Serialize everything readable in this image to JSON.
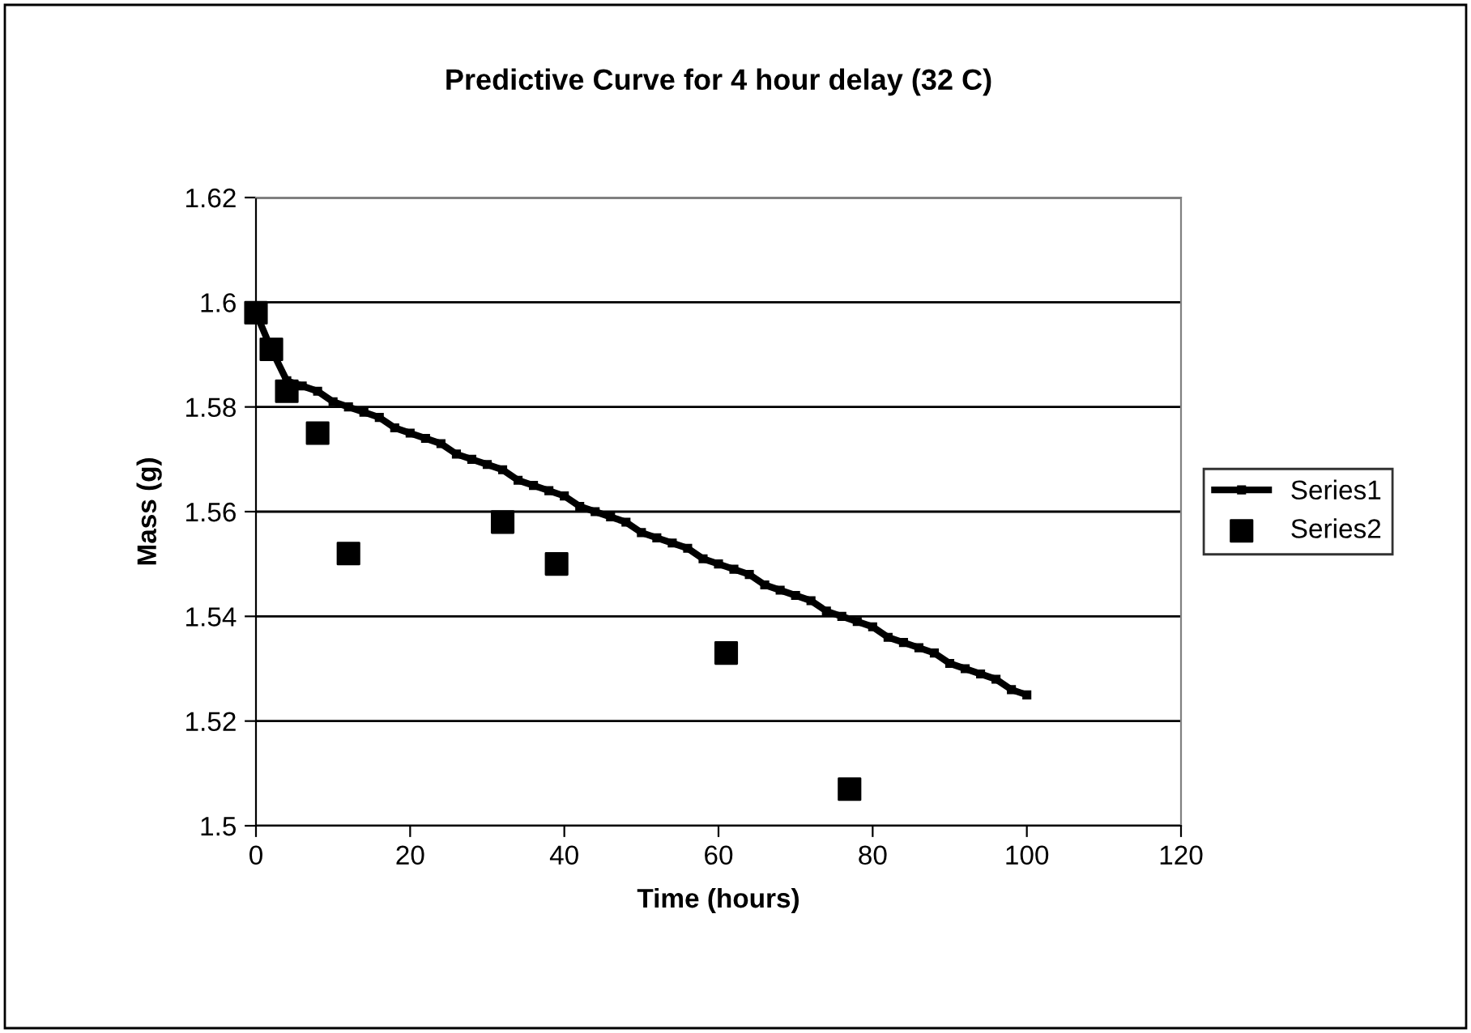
{
  "chart_data": {
    "type": "line",
    "title": "Predictive Curve for 4 hour delay (32 C)",
    "xlabel": "Time (hours)",
    "ylabel": "Mass (g)",
    "xlim": [
      0,
      120
    ],
    "xticks": [
      0,
      20,
      40,
      60,
      80,
      100,
      120
    ],
    "ylim": [
      1.5,
      1.62
    ],
    "yticks": [
      1.5,
      1.52,
      1.54,
      1.56,
      1.58,
      1.6,
      1.62
    ],
    "grid": "y",
    "legend": "right",
    "series": [
      {
        "name": "Series1",
        "color": "#000000",
        "marker": "square",
        "line_style": "solid",
        "x": [
          0,
          2,
          4,
          6,
          8,
          10,
          12,
          14,
          16,
          18,
          20,
          22,
          24,
          26,
          28,
          30,
          32,
          34,
          36,
          38,
          40,
          42,
          44,
          46,
          48,
          50,
          52,
          54,
          56,
          58,
          60,
          62,
          64,
          66,
          68,
          70,
          72,
          74,
          76,
          78,
          80,
          82,
          84,
          86,
          88,
          90,
          92,
          94,
          96,
          98,
          100
        ],
        "values": [
          1.598,
          1.591,
          1.585,
          1.584,
          1.583,
          1.581,
          1.58,
          1.579,
          1.578,
          1.576,
          1.575,
          1.574,
          1.573,
          1.571,
          1.57,
          1.569,
          1.568,
          1.566,
          1.565,
          1.564,
          1.563,
          1.561,
          1.56,
          1.559,
          1.558,
          1.556,
          1.555,
          1.554,
          1.553,
          1.551,
          1.55,
          1.549,
          1.548,
          1.546,
          1.545,
          1.544,
          1.543,
          1.541,
          1.54,
          1.539,
          1.538,
          1.536,
          1.535,
          1.534,
          1.533,
          1.531,
          1.53,
          1.529,
          1.528,
          1.526,
          1.525
        ]
      },
      {
        "name": "Series2",
        "type": "scatter",
        "color": "#000000",
        "marker": "square",
        "x": [
          0,
          2,
          4,
          8,
          12,
          32,
          39,
          61,
          77
        ],
        "values": [
          1.598,
          1.591,
          1.583,
          1.575,
          1.552,
          1.558,
          1.55,
          1.533,
          1.507
        ]
      }
    ]
  }
}
